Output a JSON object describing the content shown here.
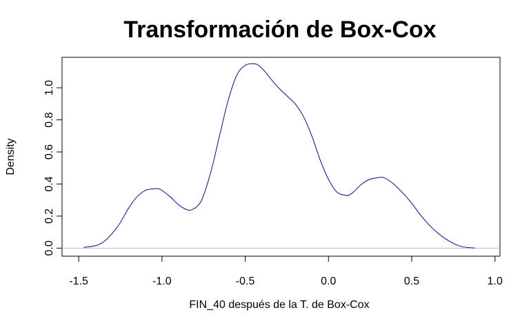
{
  "chart_data": {
    "type": "line",
    "title": "Transformación de Box-Cox",
    "xlabel": "FIN_40 después de la T. de Box-Cox",
    "ylabel": "Density",
    "xlim": [
      -1.6,
      1.03
    ],
    "ylim": [
      -0.05,
      1.19
    ],
    "x_ticks": [
      -1.5,
      -1.0,
      -0.5,
      0.0,
      0.5,
      1.0
    ],
    "x_tick_labels": [
      "-1.5",
      "-1.0",
      "-0.5",
      "0.0",
      "0.5",
      "1.0"
    ],
    "y_ticks": [
      0.0,
      0.2,
      0.4,
      0.6,
      0.8,
      1.0
    ],
    "y_tick_labels": [
      "0.0",
      "0.2",
      "0.4",
      "0.6",
      "0.8",
      "1.0"
    ],
    "grid": false,
    "baseline": 0,
    "series": [
      {
        "color": "#0000cc",
        "x": [
          -1.47,
          -1.4,
          -1.35,
          -1.3,
          -1.25,
          -1.2,
          -1.15,
          -1.1,
          -1.05,
          -1.02,
          -1.0,
          -0.95,
          -0.9,
          -0.85,
          -0.82,
          -0.78,
          -0.75,
          -0.7,
          -0.65,
          -0.6,
          -0.55,
          -0.5,
          -0.45,
          -0.42,
          -0.38,
          -0.35,
          -0.3,
          -0.25,
          -0.2,
          -0.15,
          -0.1,
          -0.05,
          0.0,
          0.05,
          0.1,
          0.12,
          0.15,
          0.2,
          0.25,
          0.3,
          0.33,
          0.38,
          0.45,
          0.5,
          0.55,
          0.6,
          0.65,
          0.7,
          0.75,
          0.8,
          0.85,
          0.88
        ],
        "y": [
          0.005,
          0.015,
          0.04,
          0.09,
          0.16,
          0.25,
          0.32,
          0.36,
          0.37,
          0.37,
          0.36,
          0.32,
          0.27,
          0.24,
          0.24,
          0.27,
          0.33,
          0.5,
          0.72,
          0.93,
          1.08,
          1.14,
          1.15,
          1.14,
          1.1,
          1.06,
          1.0,
          0.95,
          0.9,
          0.82,
          0.7,
          0.55,
          0.43,
          0.35,
          0.33,
          0.33,
          0.35,
          0.4,
          0.43,
          0.44,
          0.44,
          0.41,
          0.34,
          0.28,
          0.21,
          0.15,
          0.1,
          0.06,
          0.03,
          0.01,
          0.003,
          0.001
        ]
      }
    ]
  }
}
